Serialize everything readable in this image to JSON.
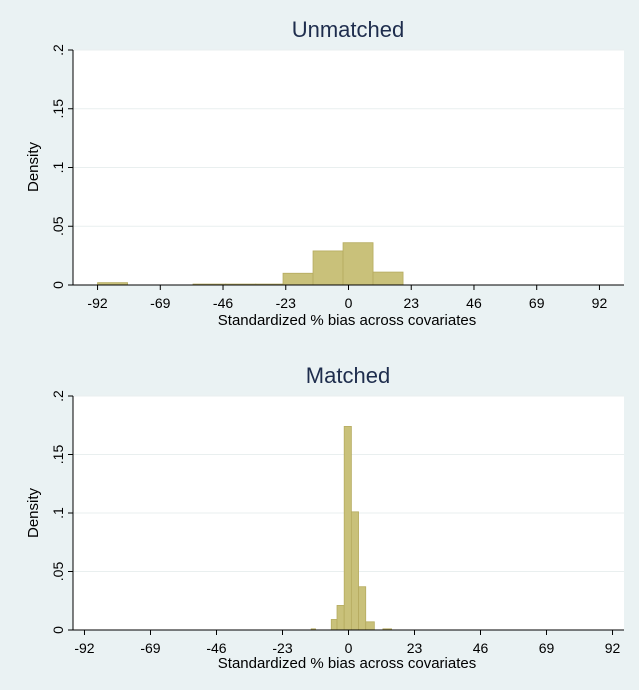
{
  "colors": {
    "background": "#eaf2f3",
    "plot_background": "#ffffff",
    "bar_fill": "#c9c17a",
    "bar_stroke": "#b5ab5f",
    "title": "#1e2d4d"
  },
  "chart_data": [
    {
      "type": "bar",
      "title": "Unmatched",
      "xlabel": "Standardized % bias across covariates",
      "ylabel": "Density",
      "xticks": [
        "-92",
        "-69",
        "-46",
        "-23",
        "0",
        "23",
        "46",
        "69",
        "92"
      ],
      "yticks": [
        "0",
        ".05",
        ".1",
        ".15",
        ".2"
      ],
      "xlim": [
        -101,
        101
      ],
      "ylim": [
        0,
        0.2
      ],
      "grid": true,
      "bins": [
        {
          "x0": -92,
          "x1": -81,
          "density": 0.002
        },
        {
          "x0": -57,
          "x1": -45,
          "density": 0.0008
        },
        {
          "x0": -45,
          "x1": -34,
          "density": 0.0008
        },
        {
          "x0": -34,
          "x1": -24,
          "density": 0.0008
        },
        {
          "x0": -24,
          "x1": -13,
          "density": 0.01
        },
        {
          "x0": -13,
          "x1": -2,
          "density": 0.029
        },
        {
          "x0": -2,
          "x1": 9,
          "density": 0.036
        },
        {
          "x0": 9,
          "x1": 20,
          "density": 0.011
        }
      ]
    },
    {
      "type": "bar",
      "title": "Matched",
      "xlabel": "Standardized % bias across covariates",
      "ylabel": "Density",
      "xticks": [
        "-92",
        "-69",
        "-46",
        "-23",
        "0",
        "23",
        "46",
        "69",
        "92"
      ],
      "yticks": [
        "0",
        ".05",
        ".1",
        ".15",
        ".2"
      ],
      "xlim": [
        -96,
        96
      ],
      "ylim": [
        0,
        0.2
      ],
      "grid": true,
      "bins": [
        {
          "x0": -13,
          "x1": -11.5,
          "density": 0.001
        },
        {
          "x0": -6,
          "x1": -4,
          "density": 0.009
        },
        {
          "x0": -4,
          "x1": -1.5,
          "density": 0.021
        },
        {
          "x0": -1.5,
          "x1": 1,
          "density": 0.174
        },
        {
          "x0": 1,
          "x1": 3.5,
          "density": 0.101
        },
        {
          "x0": 3.5,
          "x1": 6,
          "density": 0.037
        },
        {
          "x0": 6,
          "x1": 9,
          "density": 0.007
        },
        {
          "x0": 12,
          "x1": 15,
          "density": 0.001
        }
      ]
    }
  ]
}
